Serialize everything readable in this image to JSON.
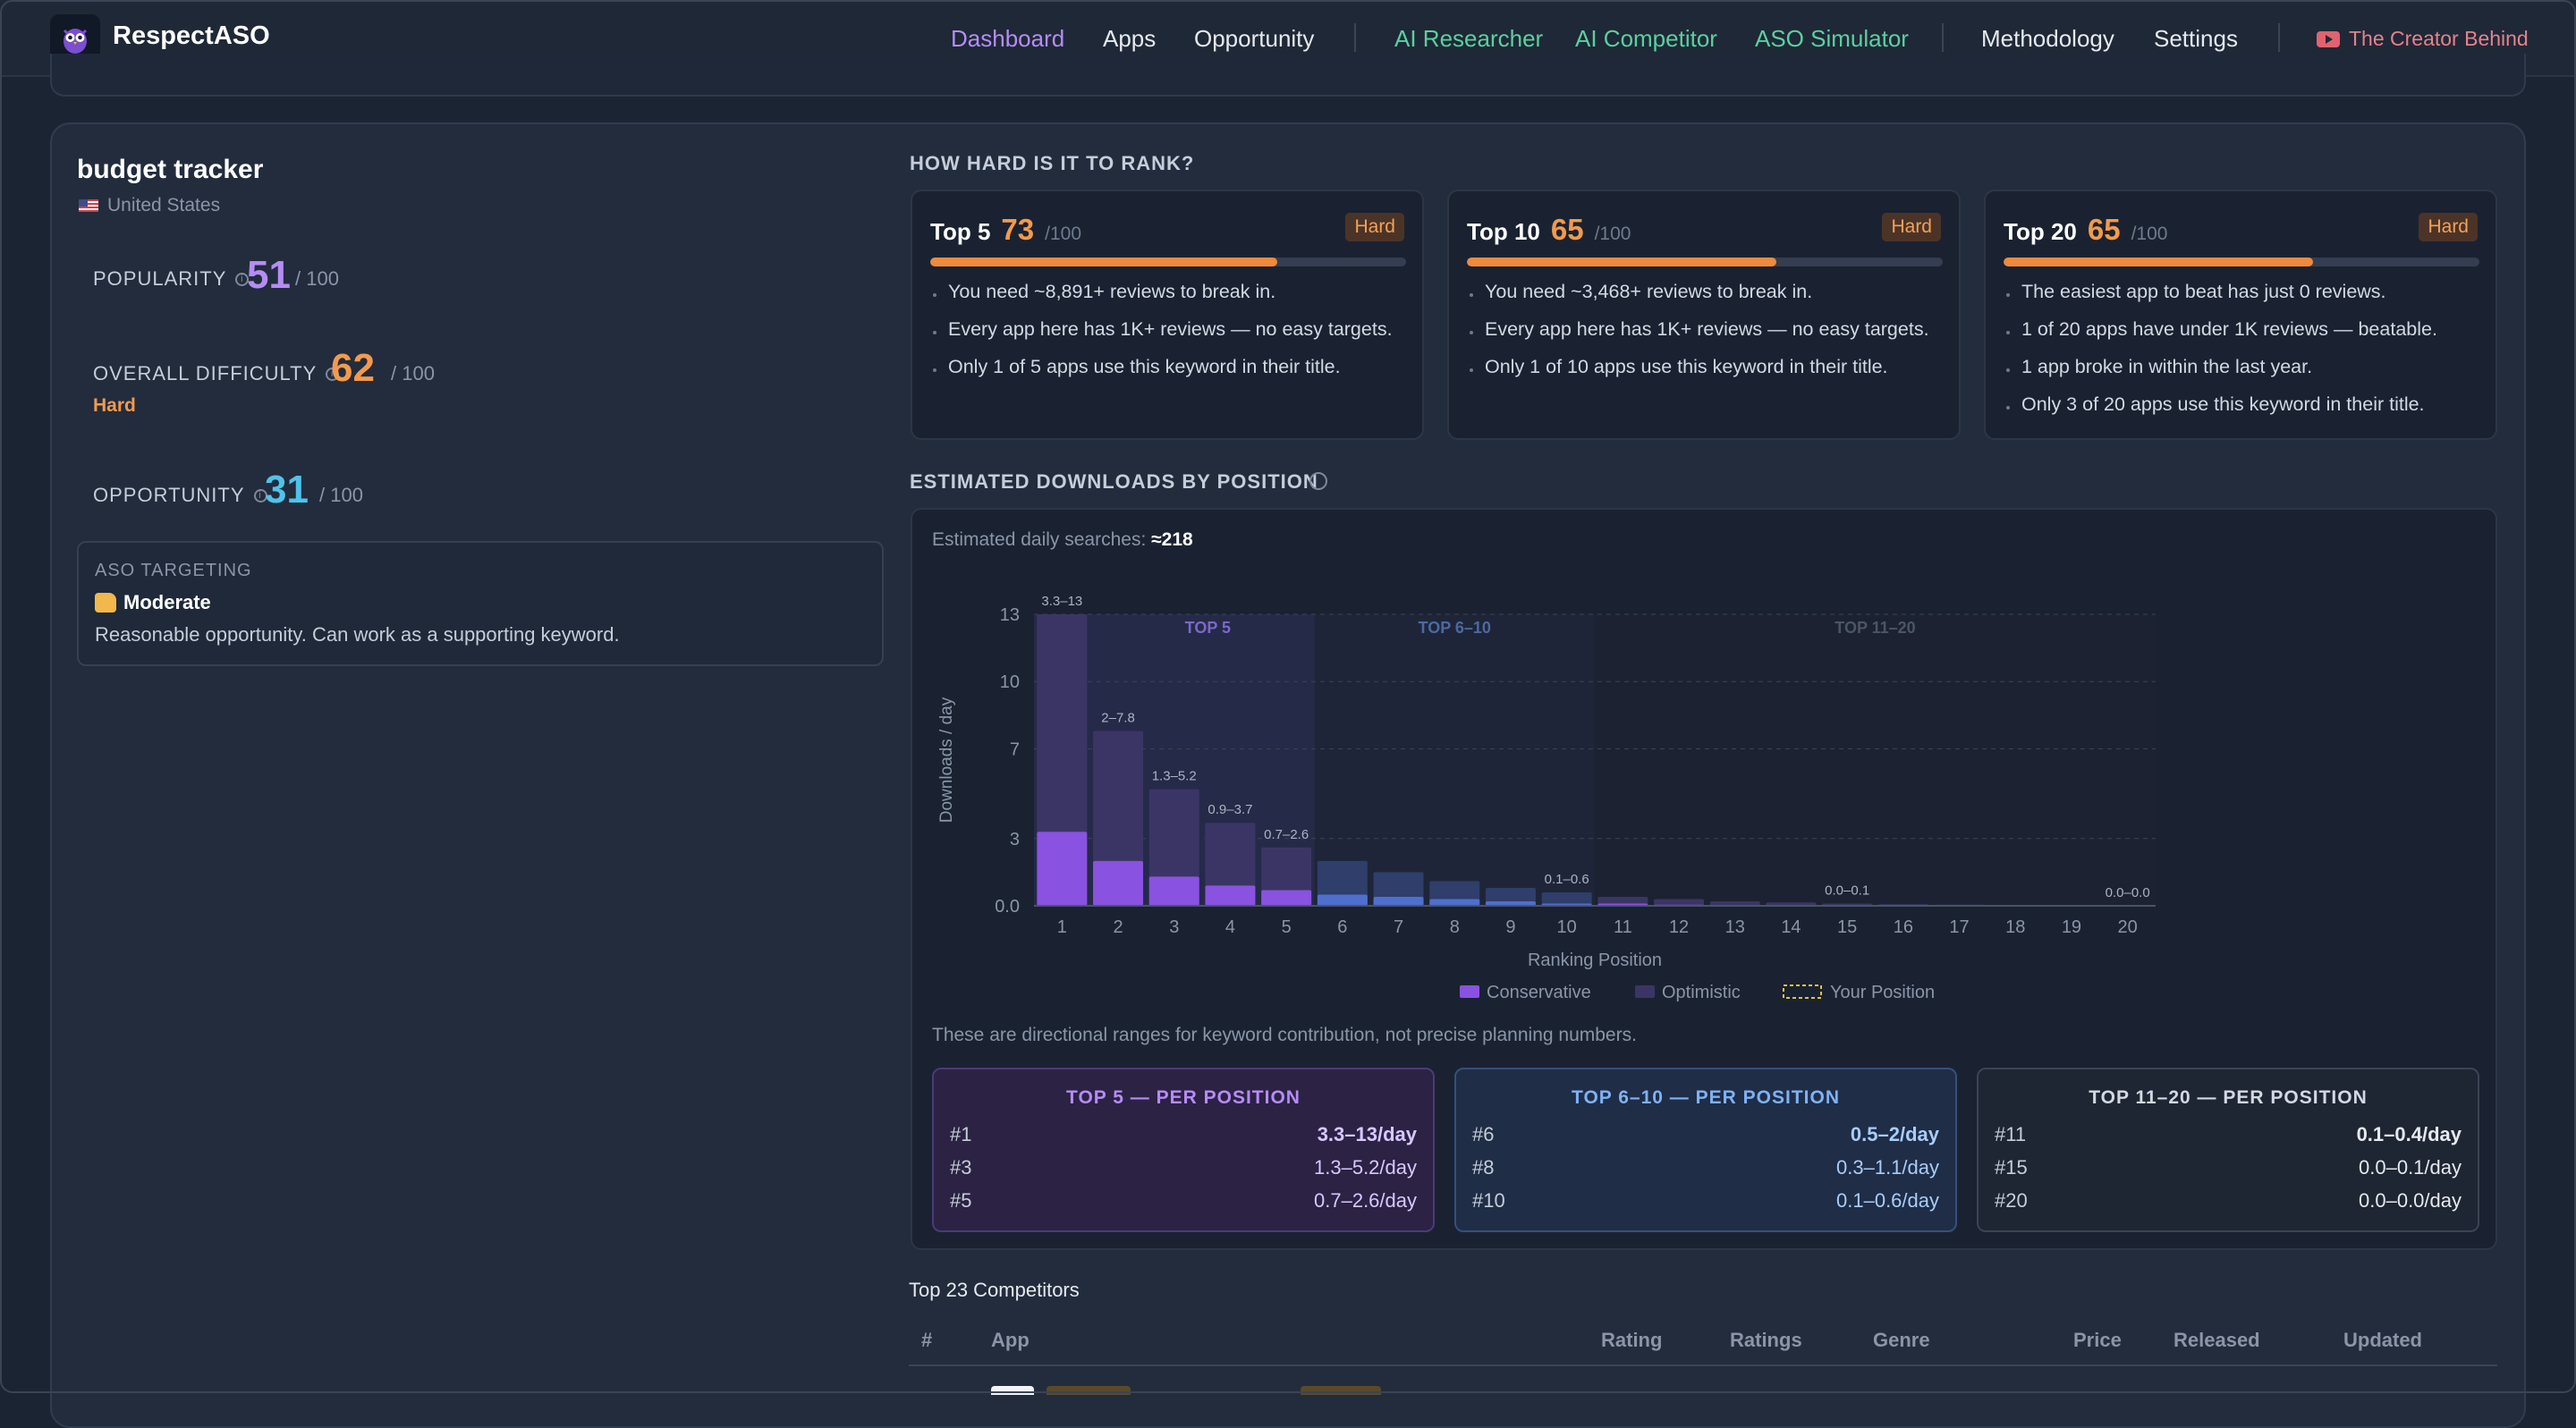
{
  "nav": {
    "brand": "RespectASO",
    "links": [
      "Dashboard",
      "Apps",
      "Opportunity",
      "AI Researcher",
      "AI Competitor",
      "ASO Simulator",
      "Methodology",
      "Settings"
    ],
    "creator": "The Creator Behind"
  },
  "keyword": {
    "title": "budget tracker",
    "country": "United States",
    "popularity": {
      "label": "POPULARITY",
      "value": "51",
      "max": "/ 100"
    },
    "difficulty": {
      "label": "OVERALL DIFFICULTY",
      "value": "62",
      "max": "/ 100",
      "level": "Hard"
    },
    "opportunity": {
      "label": "OPPORTUNITY",
      "value": "31",
      "max": "/ 100"
    },
    "aso": {
      "label": "ASO TARGETING",
      "level": "Moderate",
      "desc": "Reasonable opportunity. Can work as a supporting keyword."
    }
  },
  "rank": {
    "heading": "HOW HARD IS IT TO RANK?",
    "cards": [
      {
        "name": "Top 5",
        "score": "73",
        "max": "/100",
        "badge": "Hard",
        "fill": 73,
        "bullets": [
          "You need ~8,891+ reviews to break in.",
          "Every app here has 1K+ reviews — no easy targets.",
          "Only 1 of 5 apps use this keyword in their title."
        ]
      },
      {
        "name": "Top 10",
        "score": "65",
        "max": "/100",
        "badge": "Hard",
        "fill": 65,
        "bullets": [
          "You need ~3,468+ reviews to break in.",
          "Every app here has 1K+ reviews — no easy targets.",
          "Only 1 of 10 apps use this keyword in their title."
        ]
      },
      {
        "name": "Top 20",
        "score": "65",
        "max": "/100",
        "badge": "Hard",
        "fill": 65,
        "bullets": [
          "The easiest app to beat has just 0 reviews.",
          "1 of 20 apps have under 1K reviews — beatable.",
          "1 app broke in within the last year.",
          "Only 3 of 20 apps use this keyword in their title."
        ]
      }
    ]
  },
  "downloads": {
    "heading": "ESTIMATED DOWNLOADS BY POSITION",
    "daily_label": "Estimated daily searches:",
    "daily_value": "≈218",
    "note": "These are directional ranges for keyword contribution, not precise planning numbers.",
    "tiers": [
      {
        "title": "TOP 5 — PER POSITION",
        "rows": [
          {
            "pos": "#1",
            "val": "3.3–13/day"
          },
          {
            "pos": "#3",
            "val": "1.3–5.2/day"
          },
          {
            "pos": "#5",
            "val": "0.7–2.6/day"
          }
        ]
      },
      {
        "title": "TOP 6–10 — PER POSITION",
        "rows": [
          {
            "pos": "#6",
            "val": "0.5–2/day"
          },
          {
            "pos": "#8",
            "val": "0.3–1.1/day"
          },
          {
            "pos": "#10",
            "val": "0.1–0.6/day"
          }
        ]
      },
      {
        "title": "TOP 11–20 — PER POSITION",
        "rows": [
          {
            "pos": "#11",
            "val": "0.1–0.4/day"
          },
          {
            "pos": "#15",
            "val": "0.0–0.1/day"
          },
          {
            "pos": "#20",
            "val": "0.0–0.0/day"
          }
        ]
      }
    ]
  },
  "chart_data": {
    "type": "bar",
    "xlabel": "Ranking Position",
    "ylabel": "Downloads / day",
    "ylim": [
      0,
      13
    ],
    "yticks": [
      "0.0",
      "3",
      "7",
      "10",
      "13"
    ],
    "categories": [
      "1",
      "2",
      "3",
      "4",
      "5",
      "6",
      "7",
      "8",
      "9",
      "10",
      "11",
      "12",
      "13",
      "14",
      "15",
      "16",
      "17",
      "18",
      "19",
      "20"
    ],
    "series": [
      {
        "name": "Conservative",
        "values": [
          3.3,
          2.0,
          1.3,
          0.9,
          0.7,
          0.5,
          0.4,
          0.3,
          0.2,
          0.1,
          0.1,
          0.05,
          0.04,
          0.03,
          0.0,
          0.0,
          0.0,
          0.0,
          0.0,
          0.0
        ],
        "color": "#8a52e0"
      },
      {
        "name": "Optimistic",
        "values": [
          13,
          7.8,
          5.2,
          3.7,
          2.6,
          2.0,
          1.5,
          1.1,
          0.8,
          0.6,
          0.4,
          0.3,
          0.2,
          0.15,
          0.1,
          0.07,
          0.05,
          0.03,
          0.02,
          0.0
        ],
        "color": "#3b3566"
      }
    ],
    "data_labels": [
      {
        "x": "1",
        "text": "3.3–13"
      },
      {
        "x": "2",
        "text": "2–7.8"
      },
      {
        "x": "3",
        "text": "1.3–5.2"
      },
      {
        "x": "4",
        "text": "0.9–3.7"
      },
      {
        "x": "5",
        "text": "0.7–2.6"
      },
      {
        "x": "10",
        "text": "0.1–0.6"
      },
      {
        "x": "15",
        "text": "0.0–0.1"
      },
      {
        "x": "20",
        "text": "0.0–0.0"
      }
    ],
    "zones": [
      {
        "label": "TOP 5",
        "from": 1,
        "to": 5
      },
      {
        "label": "TOP 6–10",
        "from": 6,
        "to": 10
      },
      {
        "label": "TOP 11–20",
        "from": 11,
        "to": 20
      }
    ],
    "legend": [
      {
        "label": "Conservative"
      },
      {
        "label": "Optimistic"
      },
      {
        "label": "Your Position"
      }
    ],
    "legend_position": "bottom-center"
  },
  "competitors": {
    "title": "Top 23 Competitors",
    "columns": [
      "#",
      "App",
      "Rating",
      "Ratings",
      "Genre",
      "Price",
      "Released",
      "Updated"
    ]
  }
}
